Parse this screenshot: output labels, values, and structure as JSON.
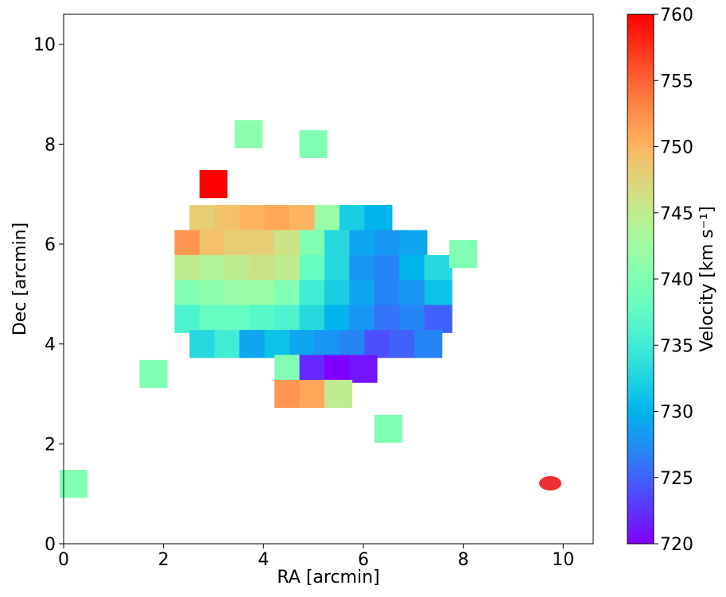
{
  "chart_data": {
    "type": "image",
    "xlabel": "RA [arcmin]",
    "ylabel": "Dec [arcmin]",
    "xlim": [
      0,
      10.6
    ],
    "xticks": [
      0,
      2,
      4,
      6,
      8,
      10
    ],
    "ylim": [
      0,
      10.6
    ],
    "yticks": [
      0,
      2,
      4,
      6,
      8,
      10
    ],
    "colormap": "rainbow",
    "colorbar": {
      "label": "Velocity [km s⁻¹]",
      "lim": [
        720,
        760
      ],
      "ticks": [
        720,
        725,
        730,
        735,
        740,
        745,
        750,
        755,
        760
      ]
    },
    "x": [
      2.8,
      3.3,
      3.8,
      4.3,
      4.8,
      5.3,
      5.8,
      6.3,
      2.5,
      3.0,
      3.5,
      4.0,
      4.5,
      5.0,
      5.5,
      6.0,
      6.5,
      7.0,
      2.5,
      3.0,
      3.5,
      4.0,
      4.5,
      5.0,
      5.5,
      6.0,
      6.5,
      7.0,
      7.5,
      2.5,
      3.0,
      3.5,
      4.0,
      4.5,
      5.0,
      5.5,
      6.0,
      6.5,
      7.0,
      7.5,
      2.5,
      3.0,
      3.5,
      4.0,
      4.5,
      5.0,
      5.5,
      6.0,
      6.5,
      7.0,
      7.5,
      2.8,
      3.3,
      3.8,
      4.3,
      4.8,
      5.3,
      5.8,
      6.3,
      6.8,
      7.3,
      4.5,
      5.0,
      5.5,
      6.0,
      4.5,
      5.0,
      5.5,
      0.2,
      8.0,
      5.0,
      3.7,
      3.0,
      6.5,
      1.8
    ],
    "y": [
      6.5,
      6.5,
      6.5,
      6.5,
      6.5,
      6.5,
      6.5,
      6.5,
      6.0,
      6.0,
      6.0,
      6.0,
      6.0,
      6.0,
      6.0,
      6.0,
      6.0,
      6.0,
      5.5,
      5.5,
      5.5,
      5.5,
      5.5,
      5.5,
      5.5,
      5.5,
      5.5,
      5.5,
      5.5,
      5.0,
      5.0,
      5.0,
      5.0,
      5.0,
      5.0,
      5.0,
      5.0,
      5.0,
      5.0,
      5.0,
      4.5,
      4.5,
      4.5,
      4.5,
      4.5,
      4.5,
      4.5,
      4.5,
      4.5,
      4.5,
      4.5,
      4.0,
      4.0,
      4.0,
      4.0,
      4.0,
      4.0,
      4.0,
      4.0,
      4.0,
      4.0,
      3.5,
      3.5,
      3.5,
      3.5,
      3.0,
      3.0,
      3.0,
      1.2,
      5.8,
      8.0,
      8.2,
      7.2,
      2.3,
      3.4
    ],
    "values": [
      748,
      749,
      750,
      751,
      750,
      742,
      732,
      730,
      752,
      749,
      748,
      748,
      746,
      740,
      733,
      729,
      728,
      729,
      745,
      744,
      745,
      746,
      745,
      738,
      733,
      728,
      727,
      730,
      733,
      740,
      741,
      742,
      742,
      740,
      735,
      732,
      729,
      727,
      728,
      731,
      736,
      738,
      738,
      737,
      736,
      733,
      730,
      728,
      726,
      727,
      725,
      733,
      735,
      729,
      731,
      729,
      728,
      727,
      724,
      725,
      727,
      740,
      722,
      720,
      721,
      752,
      751,
      745,
      740,
      740,
      740,
      741,
      760,
      740,
      740
    ]
  }
}
